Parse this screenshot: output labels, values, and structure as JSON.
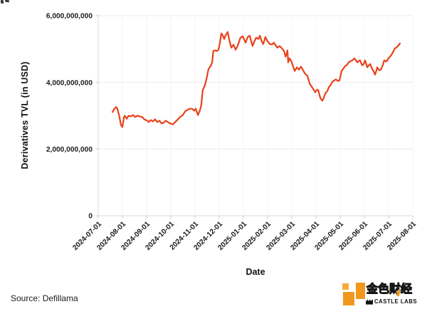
{
  "chart_data": {
    "type": "line",
    "xlabel": "Date",
    "ylabel": "Derivatives TVL (in USD)",
    "x_tick_labels": [
      "2024-07-01",
      "2024-08-01",
      "2024-09-01",
      "2024-10-01",
      "2024-11-01",
      "2024-12-01",
      "2025-01-01",
      "2025-02-01",
      "2025-03-01",
      "2025-04-01",
      "2025-05-01",
      "2025-06-01",
      "2025-07-01",
      "2025-08-01"
    ],
    "y_ticks": [
      {
        "value": 0,
        "label": "0"
      },
      {
        "value": 2000000000,
        "label": "2,000,000,000"
      },
      {
        "value": 4000000000,
        "label": "4,000,000,000"
      },
      {
        "value": 6000000000,
        "label": "6,000,000,000"
      }
    ],
    "ylim": [
      0,
      6000000000
    ],
    "grid": true,
    "legend": "none",
    "line_color": "#E8421A",
    "x_unit": "months since 2024-07-01 (fractional tick index)",
    "points_unit": "USD billions",
    "points": [
      [
        0.59,
        3.11
      ],
      [
        0.65,
        3.19
      ],
      [
        0.74,
        3.26
      ],
      [
        0.79,
        3.21
      ],
      [
        0.88,
        2.96
      ],
      [
        0.94,
        2.72
      ],
      [
        1.0,
        2.66
      ],
      [
        1.06,
        2.94
      ],
      [
        1.09,
        3.0
      ],
      [
        1.18,
        2.91
      ],
      [
        1.26,
        3.0
      ],
      [
        1.35,
        2.98
      ],
      [
        1.44,
        3.02
      ],
      [
        1.53,
        2.96
      ],
      [
        1.62,
        3.0
      ],
      [
        1.71,
        2.98
      ],
      [
        1.82,
        2.96
      ],
      [
        1.91,
        2.89
      ],
      [
        2.03,
        2.85
      ],
      [
        2.09,
        2.81
      ],
      [
        2.18,
        2.87
      ],
      [
        2.26,
        2.83
      ],
      [
        2.35,
        2.89
      ],
      [
        2.44,
        2.81
      ],
      [
        2.53,
        2.85
      ],
      [
        2.62,
        2.77
      ],
      [
        2.71,
        2.79
      ],
      [
        2.79,
        2.85
      ],
      [
        2.88,
        2.81
      ],
      [
        2.97,
        2.77
      ],
      [
        3.09,
        2.74
      ],
      [
        3.18,
        2.81
      ],
      [
        3.29,
        2.89
      ],
      [
        3.38,
        2.96
      ],
      [
        3.5,
        3.02
      ],
      [
        3.59,
        3.13
      ],
      [
        3.68,
        3.17
      ],
      [
        3.79,
        3.21
      ],
      [
        3.88,
        3.21
      ],
      [
        3.97,
        3.15
      ],
      [
        4.03,
        3.21
      ],
      [
        4.12,
        3.02
      ],
      [
        4.21,
        3.17
      ],
      [
        4.26,
        3.32
      ],
      [
        4.32,
        3.77
      ],
      [
        4.41,
        3.91
      ],
      [
        4.47,
        4.09
      ],
      [
        4.56,
        4.4
      ],
      [
        4.65,
        4.49
      ],
      [
        4.71,
        4.6
      ],
      [
        4.76,
        4.94
      ],
      [
        4.85,
        4.96
      ],
      [
        4.91,
        4.94
      ],
      [
        4.97,
        4.98
      ],
      [
        5.03,
        5.19
      ],
      [
        5.09,
        5.47
      ],
      [
        5.15,
        5.4
      ],
      [
        5.21,
        5.3
      ],
      [
        5.26,
        5.4
      ],
      [
        5.35,
        5.51
      ],
      [
        5.41,
        5.3
      ],
      [
        5.5,
        5.04
      ],
      [
        5.59,
        5.13
      ],
      [
        5.68,
        4.98
      ],
      [
        5.76,
        5.09
      ],
      [
        5.88,
        5.34
      ],
      [
        5.97,
        5.38
      ],
      [
        6.09,
        5.19
      ],
      [
        6.18,
        5.36
      ],
      [
        6.26,
        5.4
      ],
      [
        6.38,
        5.09
      ],
      [
        6.47,
        5.26
      ],
      [
        6.53,
        5.34
      ],
      [
        6.62,
        5.3
      ],
      [
        6.68,
        5.4
      ],
      [
        6.76,
        5.23
      ],
      [
        6.82,
        5.15
      ],
      [
        6.91,
        5.36
      ],
      [
        7.0,
        5.23
      ],
      [
        7.09,
        5.15
      ],
      [
        7.18,
        5.13
      ],
      [
        7.26,
        5.19
      ],
      [
        7.35,
        5.09
      ],
      [
        7.41,
        5.04
      ],
      [
        7.5,
        5.09
      ],
      [
        7.59,
        5.02
      ],
      [
        7.68,
        4.94
      ],
      [
        7.74,
        4.77
      ],
      [
        7.79,
        4.87
      ],
      [
        7.82,
        4.96
      ],
      [
        7.85,
        4.6
      ],
      [
        7.91,
        4.72
      ],
      [
        8.0,
        4.6
      ],
      [
        8.06,
        4.47
      ],
      [
        8.12,
        4.34
      ],
      [
        8.21,
        4.45
      ],
      [
        8.29,
        4.38
      ],
      [
        8.38,
        4.47
      ],
      [
        8.47,
        4.36
      ],
      [
        8.53,
        4.28
      ],
      [
        8.65,
        4.19
      ],
      [
        8.74,
        3.96
      ],
      [
        8.82,
        3.87
      ],
      [
        8.88,
        3.81
      ],
      [
        8.97,
        3.7
      ],
      [
        9.03,
        3.77
      ],
      [
        9.09,
        3.77
      ],
      [
        9.18,
        3.53
      ],
      [
        9.26,
        3.45
      ],
      [
        9.32,
        3.53
      ],
      [
        9.38,
        3.66
      ],
      [
        9.47,
        3.74
      ],
      [
        9.53,
        3.85
      ],
      [
        9.62,
        3.94
      ],
      [
        9.68,
        4.02
      ],
      [
        9.76,
        4.06
      ],
      [
        9.82,
        4.09
      ],
      [
        9.91,
        4.04
      ],
      [
        9.97,
        4.06
      ],
      [
        10.06,
        4.34
      ],
      [
        10.15,
        4.43
      ],
      [
        10.21,
        4.49
      ],
      [
        10.29,
        4.53
      ],
      [
        10.35,
        4.6
      ],
      [
        10.44,
        4.64
      ],
      [
        10.5,
        4.66
      ],
      [
        10.59,
        4.72
      ],
      [
        10.65,
        4.66
      ],
      [
        10.71,
        4.6
      ],
      [
        10.76,
        4.64
      ],
      [
        10.82,
        4.66
      ],
      [
        10.91,
        4.51
      ],
      [
        10.97,
        4.55
      ],
      [
        11.03,
        4.66
      ],
      [
        11.12,
        4.45
      ],
      [
        11.18,
        4.51
      ],
      [
        11.24,
        4.55
      ],
      [
        11.32,
        4.4
      ],
      [
        11.38,
        4.34
      ],
      [
        11.44,
        4.23
      ],
      [
        11.5,
        4.36
      ],
      [
        11.53,
        4.45
      ],
      [
        11.62,
        4.36
      ],
      [
        11.68,
        4.38
      ],
      [
        11.76,
        4.51
      ],
      [
        11.82,
        4.66
      ],
      [
        11.91,
        4.62
      ],
      [
        11.97,
        4.7
      ],
      [
        12.06,
        4.77
      ],
      [
        12.12,
        4.83
      ],
      [
        12.21,
        4.94
      ],
      [
        12.26,
        5.02
      ],
      [
        12.32,
        5.04
      ],
      [
        12.38,
        5.09
      ],
      [
        12.44,
        5.13
      ],
      [
        12.47,
        5.17
      ]
    ]
  },
  "footer": {
    "source_label": "Source: Defillama"
  },
  "branding": {
    "cn_name": "金色财经",
    "en_name": "CASTLE LABS",
    "orange": "#F0981E",
    "orange_light": "#F5AC3B",
    "text_black": "#111111"
  }
}
